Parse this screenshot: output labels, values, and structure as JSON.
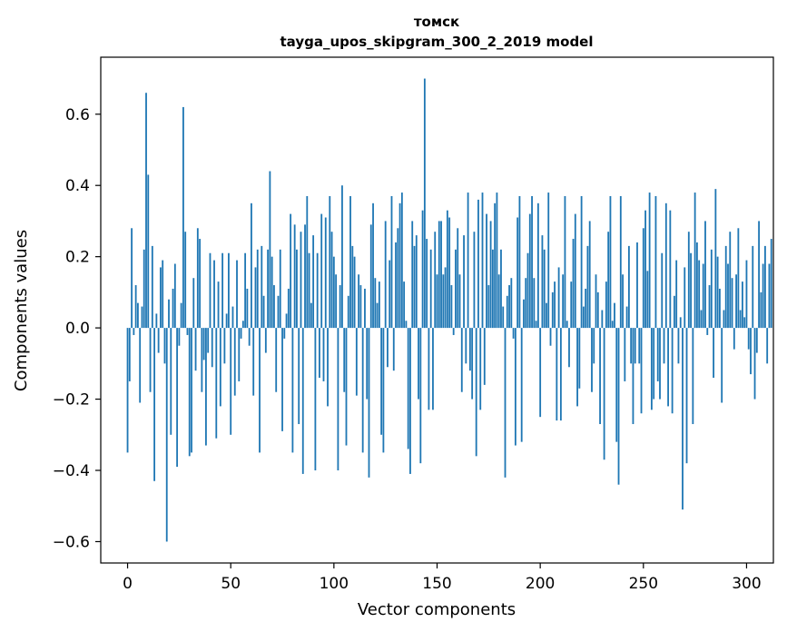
{
  "chart_data": {
    "type": "bar",
    "title": "томск",
    "subtitle": "tayga_upos_skipgram_300_2_2019 model",
    "xlabel": "Vector components",
    "ylabel": "Components values",
    "xlim": [
      -13,
      313
    ],
    "ylim": [
      -0.66,
      0.76
    ],
    "xticks": [
      0,
      50,
      100,
      150,
      200,
      250,
      300
    ],
    "xtick_labels": [
      "0",
      "50",
      "100",
      "150",
      "200",
      "250",
      "300"
    ],
    "yticks": [
      -0.6,
      -0.4,
      -0.2,
      0.0,
      0.2,
      0.4,
      0.6
    ],
    "ytick_labels": [
      "−0.6",
      "−0.4",
      "−0.2",
      "0.0",
      "0.2",
      "0.4",
      "0.6"
    ],
    "grid": false,
    "bar_color": "#1f77b4",
    "values": [
      -0.35,
      -0.15,
      0.28,
      -0.02,
      0.12,
      0.07,
      -0.21,
      0.06,
      0.22,
      0.66,
      0.43,
      -0.18,
      0.23,
      -0.43,
      0.04,
      -0.07,
      0.17,
      0.19,
      -0.1,
      -0.6,
      0.08,
      -0.3,
      0.11,
      0.18,
      -0.39,
      -0.05,
      0.07,
      0.62,
      0.27,
      -0.02,
      -0.36,
      -0.35,
      0.14,
      -0.12,
      0.28,
      0.25,
      -0.18,
      -0.09,
      -0.33,
      -0.07,
      0.21,
      -0.11,
      0.19,
      -0.31,
      0.13,
      -0.22,
      0.21,
      -0.1,
      0.04,
      0.21,
      -0.3,
      0.06,
      -0.19,
      0.19,
      -0.15,
      -0.03,
      0.02,
      0.21,
      0.11,
      -0.05,
      0.35,
      -0.19,
      0.17,
      0.22,
      -0.35,
      0.23,
      0.09,
      -0.07,
      0.22,
      0.44,
      0.2,
      0.12,
      -0.18,
      0.09,
      0.22,
      -0.29,
      -0.03,
      0.04,
      0.11,
      0.32,
      -0.35,
      0.29,
      0.22,
      -0.27,
      0.27,
      -0.41,
      0.29,
      0.37,
      0.21,
      0.07,
      0.26,
      -0.4,
      0.21,
      -0.14,
      0.32,
      -0.15,
      0.31,
      -0.22,
      0.37,
      0.27,
      0.2,
      0.15,
      -0.4,
      0.12,
      0.4,
      -0.18,
      -0.33,
      0.09,
      0.37,
      0.23,
      0.2,
      -0.19,
      0.15,
      0.12,
      -0.35,
      0.11,
      -0.2,
      -0.42,
      0.29,
      0.35,
      0.14,
      0.07,
      0.13,
      -0.3,
      -0.35,
      0.3,
      -0.11,
      0.19,
      0.37,
      -0.12,
      0.24,
      0.28,
      0.35,
      0.38,
      0.13,
      0.02,
      -0.34,
      -0.41,
      0.3,
      0.23,
      0.26,
      -0.2,
      -0.38,
      0.33,
      0.7,
      0.25,
      -0.23,
      0.22,
      -0.23,
      0.27,
      0.15,
      0.3,
      0.3,
      0.15,
      0.17,
      0.33,
      0.31,
      0.12,
      -0.02,
      0.22,
      0.28,
      0.15,
      -0.18,
      0.26,
      -0.1,
      0.38,
      -0.12,
      -0.2,
      0.27,
      -0.36,
      0.36,
      -0.23,
      0.38,
      -0.16,
      0.32,
      0.12,
      0.3,
      0.22,
      0.35,
      0.38,
      0.15,
      0.22,
      0.06,
      -0.42,
      0.09,
      0.12,
      0.14,
      -0.03,
      -0.33,
      0.31,
      0.37,
      -0.32,
      0.08,
      0.14,
      0.21,
      0.32,
      0.37,
      0.14,
      0.02,
      0.35,
      -0.25,
      0.26,
      0.22,
      0.07,
      0.38,
      -0.05,
      0.1,
      0.13,
      -0.26,
      0.17,
      -0.26,
      0.15,
      0.37,
      0.02,
      -0.11,
      0.13,
      0.25,
      0.32,
      -0.22,
      -0.17,
      0.37,
      0.06,
      0.11,
      0.23,
      0.3,
      -0.18,
      -0.1,
      0.15,
      0.1,
      -0.27,
      0.05,
      -0.37,
      0.13,
      0.27,
      0.37,
      0.02,
      0.07,
      -0.32,
      -0.44,
      0.37,
      0.15,
      -0.15,
      0.06,
      0.23,
      -0.1,
      -0.27,
      -0.1,
      0.24,
      -0.1,
      -0.24,
      0.28,
      0.33,
      0.16,
      0.38,
      -0.23,
      -0.2,
      0.37,
      -0.15,
      -0.2,
      0.21,
      -0.1,
      0.35,
      -0.22,
      0.33,
      -0.24,
      0.09,
      0.19,
      -0.1,
      0.03,
      -0.51,
      0.17,
      -0.38,
      0.27,
      0.21,
      -0.27,
      0.38,
      0.24,
      0.19,
      0.05,
      0.18,
      0.3,
      -0.02,
      0.12,
      0.22,
      -0.14,
      0.39,
      0.2,
      0.11,
      -0.21,
      0.05,
      0.23,
      0.18,
      0.27,
      0.14,
      -0.06,
      0.15,
      0.28,
      0.05,
      0.13,
      0.03,
      0.19,
      -0.06,
      -0.13,
      0.23,
      -0.2,
      -0.07,
      0.3,
      0.1,
      0.18,
      0.23,
      -0.1,
      0.18,
      0.25
    ]
  }
}
